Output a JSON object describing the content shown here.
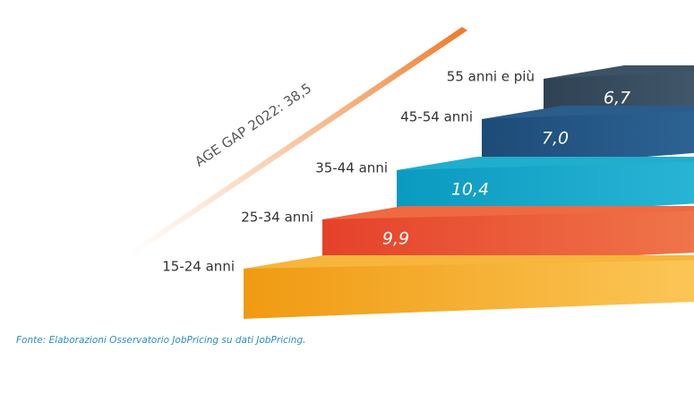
{
  "annotation": "AGE GAP 2022: 38,5",
  "steps": [
    {
      "label": "15-24 anni",
      "value": null
    },
    {
      "label": "25-34 anni",
      "value": "9,9"
    },
    {
      "label": "35-44 anni",
      "value": "10,4"
    },
    {
      "label": "45-54 anni",
      "value": "7,0"
    },
    {
      "label": "55 anni e più",
      "value": "6,7"
    }
  ],
  "source": "Fonte: Elaborazioni Osservatorio JobPricing su dati JobPricing."
}
